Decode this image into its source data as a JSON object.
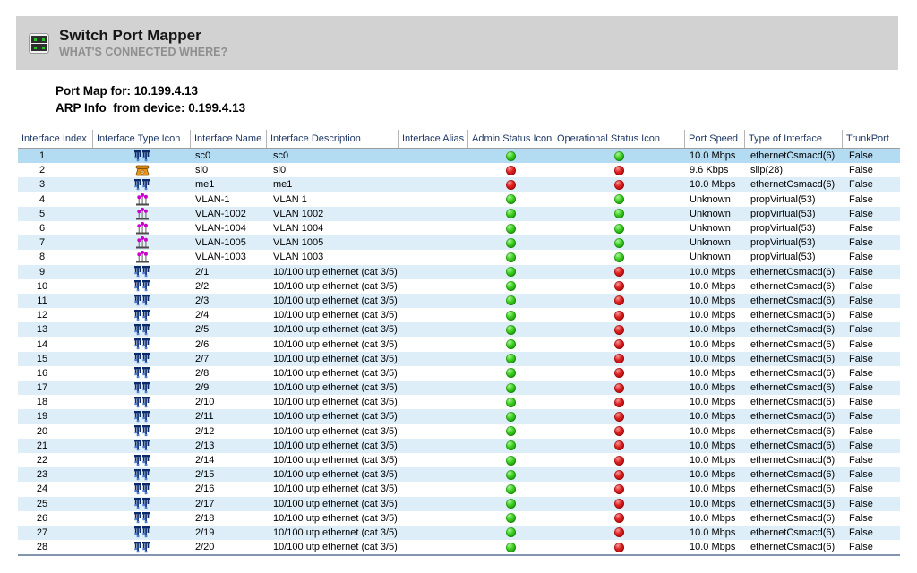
{
  "banner": {
    "title": "Switch Port Mapper",
    "subtitle": "WHAT'S CONNECTED WHERE?",
    "app_icon": "switch-grid-icon"
  },
  "info": {
    "port_map_line": "Port Map for: 10.199.4.13",
    "arp_line": "ARP Info  from device: 0.199.4.13"
  },
  "colors": {
    "banner_gray": "#d2d2d2",
    "header_text": "#1f3864",
    "selected_row": "#b3dcf3",
    "alt_row": "#ddeef9",
    "status_green": "#23a70e",
    "status_red": "#cc1111",
    "vlan_magenta": "#cc00cc",
    "phone_orange": "#e8941a",
    "switch_navy": "#0b2a6b"
  },
  "table": {
    "headers": [
      "Interface Index",
      "Interface Type Icon",
      "Interface Name",
      "Interface Description",
      "Interface Alias",
      "Admin Status Icon",
      "Operational Status Icon",
      "Port Speed",
      "Type of Interface",
      "TrunkPort"
    ],
    "rows": [
      {
        "index": "1",
        "type_icon": "switch",
        "name": "sc0",
        "description": "sc0",
        "alias": "",
        "admin_status": "green",
        "oper_status": "green",
        "port_speed": "10.0 Mbps",
        "interface_type": "ethernetCsmacd(6)",
        "trunk_port": "False",
        "selected": true
      },
      {
        "index": "2",
        "type_icon": "phone",
        "name": "sl0",
        "description": "sl0",
        "alias": "",
        "admin_status": "red",
        "oper_status": "red",
        "port_speed": "9.6 Kbps",
        "interface_type": "slip(28)",
        "trunk_port": "False",
        "selected": false
      },
      {
        "index": "3",
        "type_icon": "switch",
        "name": "me1",
        "description": "me1",
        "alias": "",
        "admin_status": "red",
        "oper_status": "red",
        "port_speed": "10.0 Mbps",
        "interface_type": "ethernetCsmacd(6)",
        "trunk_port": "False",
        "selected": false
      },
      {
        "index": "4",
        "type_icon": "vlan",
        "name": "VLAN-1",
        "description": "VLAN 1",
        "alias": "",
        "admin_status": "green",
        "oper_status": "green",
        "port_speed": "Unknown",
        "interface_type": "propVirtual(53)",
        "trunk_port": "False",
        "selected": false
      },
      {
        "index": "5",
        "type_icon": "vlan",
        "name": "VLAN-1002",
        "description": "VLAN 1002",
        "alias": "",
        "admin_status": "green",
        "oper_status": "green",
        "port_speed": "Unknown",
        "interface_type": "propVirtual(53)",
        "trunk_port": "False",
        "selected": false
      },
      {
        "index": "6",
        "type_icon": "vlan",
        "name": "VLAN-1004",
        "description": "VLAN 1004",
        "alias": "",
        "admin_status": "green",
        "oper_status": "green",
        "port_speed": "Unknown",
        "interface_type": "propVirtual(53)",
        "trunk_port": "False",
        "selected": false
      },
      {
        "index": "7",
        "type_icon": "vlan",
        "name": "VLAN-1005",
        "description": "VLAN 1005",
        "alias": "",
        "admin_status": "green",
        "oper_status": "green",
        "port_speed": "Unknown",
        "interface_type": "propVirtual(53)",
        "trunk_port": "False",
        "selected": false
      },
      {
        "index": "8",
        "type_icon": "vlan",
        "name": "VLAN-1003",
        "description": "VLAN 1003",
        "alias": "",
        "admin_status": "green",
        "oper_status": "green",
        "port_speed": "Unknown",
        "interface_type": "propVirtual(53)",
        "trunk_port": "False",
        "selected": false
      },
      {
        "index": "9",
        "type_icon": "switch",
        "name": "2/1",
        "description": "10/100 utp ethernet (cat 3/5)",
        "alias": "",
        "admin_status": "green",
        "oper_status": "red",
        "port_speed": "10.0 Mbps",
        "interface_type": "ethernetCsmacd(6)",
        "trunk_port": "False",
        "selected": false
      },
      {
        "index": "10",
        "type_icon": "switch",
        "name": "2/2",
        "description": "10/100 utp ethernet (cat 3/5)",
        "alias": "",
        "admin_status": "green",
        "oper_status": "red",
        "port_speed": "10.0 Mbps",
        "interface_type": "ethernetCsmacd(6)",
        "trunk_port": "False",
        "selected": false
      },
      {
        "index": "11",
        "type_icon": "switch",
        "name": "2/3",
        "description": "10/100 utp ethernet (cat 3/5)",
        "alias": "",
        "admin_status": "green",
        "oper_status": "red",
        "port_speed": "10.0 Mbps",
        "interface_type": "ethernetCsmacd(6)",
        "trunk_port": "False",
        "selected": false
      },
      {
        "index": "12",
        "type_icon": "switch",
        "name": "2/4",
        "description": "10/100 utp ethernet (cat 3/5)",
        "alias": "",
        "admin_status": "green",
        "oper_status": "red",
        "port_speed": "10.0 Mbps",
        "interface_type": "ethernetCsmacd(6)",
        "trunk_port": "False",
        "selected": false
      },
      {
        "index": "13",
        "type_icon": "switch",
        "name": "2/5",
        "description": "10/100 utp ethernet (cat 3/5)",
        "alias": "",
        "admin_status": "green",
        "oper_status": "red",
        "port_speed": "10.0 Mbps",
        "interface_type": "ethernetCsmacd(6)",
        "trunk_port": "False",
        "selected": false
      },
      {
        "index": "14",
        "type_icon": "switch",
        "name": "2/6",
        "description": "10/100 utp ethernet (cat 3/5)",
        "alias": "",
        "admin_status": "green",
        "oper_status": "red",
        "port_speed": "10.0 Mbps",
        "interface_type": "ethernetCsmacd(6)",
        "trunk_port": "False",
        "selected": false
      },
      {
        "index": "15",
        "type_icon": "switch",
        "name": "2/7",
        "description": "10/100 utp ethernet (cat 3/5)",
        "alias": "",
        "admin_status": "green",
        "oper_status": "red",
        "port_speed": "10.0 Mbps",
        "interface_type": "ethernetCsmacd(6)",
        "trunk_port": "False",
        "selected": false
      },
      {
        "index": "16",
        "type_icon": "switch",
        "name": "2/8",
        "description": "10/100 utp ethernet (cat 3/5)",
        "alias": "",
        "admin_status": "green",
        "oper_status": "red",
        "port_speed": "10.0 Mbps",
        "interface_type": "ethernetCsmacd(6)",
        "trunk_port": "False",
        "selected": false
      },
      {
        "index": "17",
        "type_icon": "switch",
        "name": "2/9",
        "description": "10/100 utp ethernet (cat 3/5)",
        "alias": "",
        "admin_status": "green",
        "oper_status": "red",
        "port_speed": "10.0 Mbps",
        "interface_type": "ethernetCsmacd(6)",
        "trunk_port": "False",
        "selected": false
      },
      {
        "index": "18",
        "type_icon": "switch",
        "name": "2/10",
        "description": "10/100 utp ethernet (cat 3/5)",
        "alias": "",
        "admin_status": "green",
        "oper_status": "red",
        "port_speed": "10.0 Mbps",
        "interface_type": "ethernetCsmacd(6)",
        "trunk_port": "False",
        "selected": false
      },
      {
        "index": "19",
        "type_icon": "switch",
        "name": "2/11",
        "description": "10/100 utp ethernet (cat 3/5)",
        "alias": "",
        "admin_status": "green",
        "oper_status": "red",
        "port_speed": "10.0 Mbps",
        "interface_type": "ethernetCsmacd(6)",
        "trunk_port": "False",
        "selected": false
      },
      {
        "index": "20",
        "type_icon": "switch",
        "name": "2/12",
        "description": "10/100 utp ethernet (cat 3/5)",
        "alias": "",
        "admin_status": "green",
        "oper_status": "red",
        "port_speed": "10.0 Mbps",
        "interface_type": "ethernetCsmacd(6)",
        "trunk_port": "False",
        "selected": false
      },
      {
        "index": "21",
        "type_icon": "switch",
        "name": "2/13",
        "description": "10/100 utp ethernet (cat 3/5)",
        "alias": "",
        "admin_status": "green",
        "oper_status": "red",
        "port_speed": "10.0 Mbps",
        "interface_type": "ethernetCsmacd(6)",
        "trunk_port": "False",
        "selected": false
      },
      {
        "index": "22",
        "type_icon": "switch",
        "name": "2/14",
        "description": "10/100 utp ethernet (cat 3/5)",
        "alias": "",
        "admin_status": "green",
        "oper_status": "red",
        "port_speed": "10.0 Mbps",
        "interface_type": "ethernetCsmacd(6)",
        "trunk_port": "False",
        "selected": false
      },
      {
        "index": "23",
        "type_icon": "switch",
        "name": "2/15",
        "description": "10/100 utp ethernet (cat 3/5)",
        "alias": "",
        "admin_status": "green",
        "oper_status": "red",
        "port_speed": "10.0 Mbps",
        "interface_type": "ethernetCsmacd(6)",
        "trunk_port": "False",
        "selected": false
      },
      {
        "index": "24",
        "type_icon": "switch",
        "name": "2/16",
        "description": "10/100 utp ethernet (cat 3/5)",
        "alias": "",
        "admin_status": "green",
        "oper_status": "red",
        "port_speed": "10.0 Mbps",
        "interface_type": "ethernetCsmacd(6)",
        "trunk_port": "False",
        "selected": false
      },
      {
        "index": "25",
        "type_icon": "switch",
        "name": "2/17",
        "description": "10/100 utp ethernet (cat 3/5)",
        "alias": "",
        "admin_status": "green",
        "oper_status": "red",
        "port_speed": "10.0 Mbps",
        "interface_type": "ethernetCsmacd(6)",
        "trunk_port": "False",
        "selected": false
      },
      {
        "index": "26",
        "type_icon": "switch",
        "name": "2/18",
        "description": "10/100 utp ethernet (cat 3/5)",
        "alias": "",
        "admin_status": "green",
        "oper_status": "red",
        "port_speed": "10.0 Mbps",
        "interface_type": "ethernetCsmacd(6)",
        "trunk_port": "False",
        "selected": false
      },
      {
        "index": "27",
        "type_icon": "switch",
        "name": "2/19",
        "description": "10/100 utp ethernet (cat 3/5)",
        "alias": "",
        "admin_status": "green",
        "oper_status": "red",
        "port_speed": "10.0 Mbps",
        "interface_type": "ethernetCsmacd(6)",
        "trunk_port": "False",
        "selected": false
      },
      {
        "index": "28",
        "type_icon": "switch",
        "name": "2/20",
        "description": "10/100 utp ethernet (cat 3/5)",
        "alias": "",
        "admin_status": "green",
        "oper_status": "red",
        "port_speed": "10.0 Mbps",
        "interface_type": "ethernetCsmacd(6)",
        "trunk_port": "False",
        "selected": false
      }
    ]
  }
}
